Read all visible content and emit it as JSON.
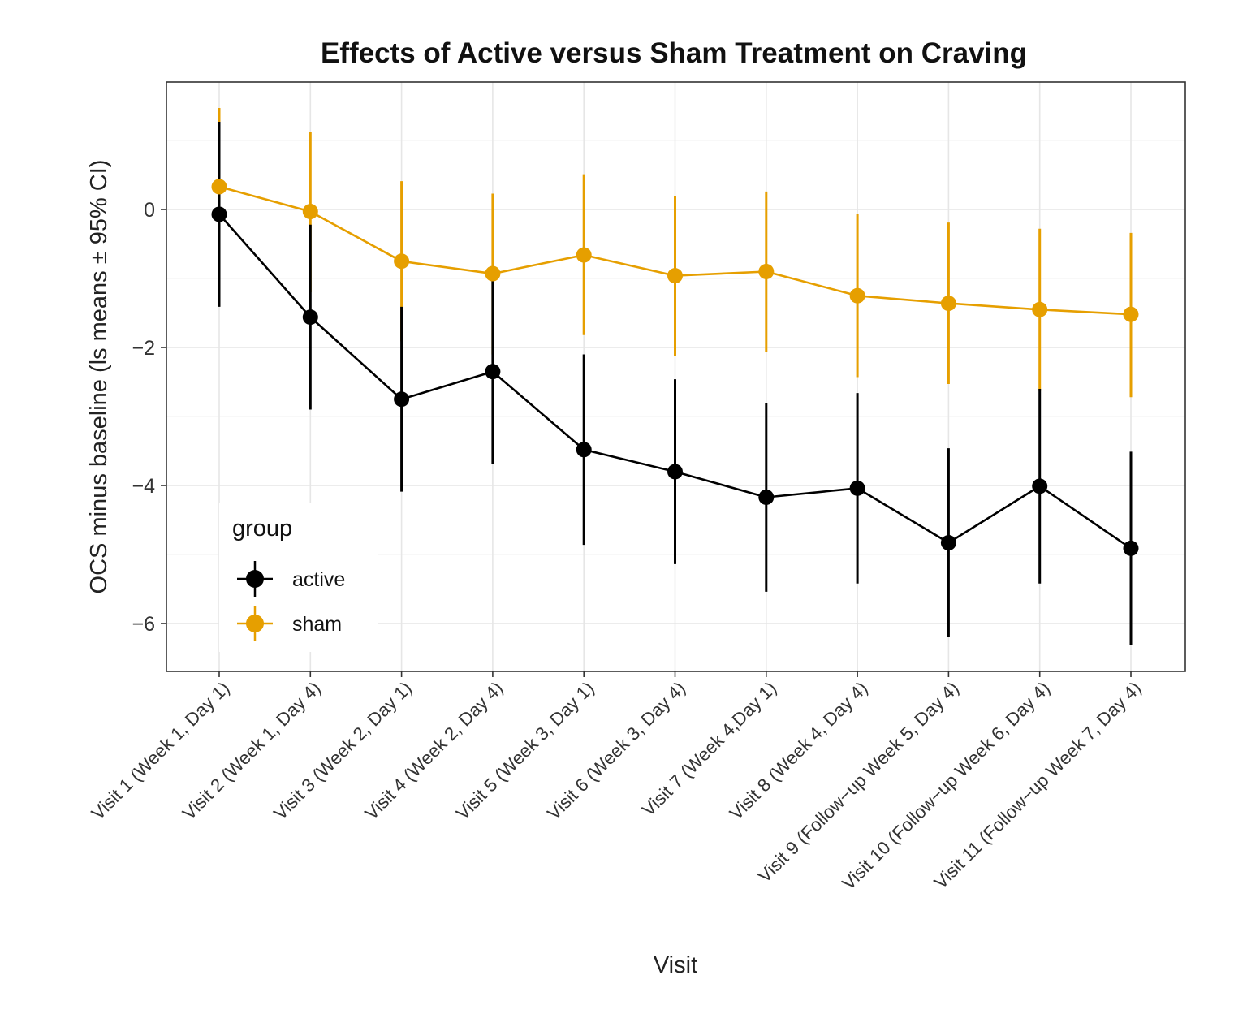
{
  "chart_data": {
    "type": "line",
    "title": "Effects of Active versus Sham Treatment on Craving",
    "xlabel": "Visit",
    "ylabel": "OCS minus baseline (ls means ± 95% CI)",
    "categories": [
      "Visit 1 (Week 1, Day 1)",
      "Visit 2 (Week 1, Day 4)",
      "Visit 3 (Week 2, Day 1)",
      "Visit 4 (Week 2, Day 4)",
      "Visit 5 (Week 3, Day 1)",
      "Visit 6 (Week 3, Day 4)",
      "Visit 7 (Week 4,Day 1)",
      "Visit 8 (Week 4, Day 4)",
      "Visit 9 (Follow−up Week 5, Day 4)",
      "Visit 10 (Follow−up Week 6, Day 4)",
      "Visit 11 (Follow−up Week 7, Day 4)"
    ],
    "ylim": [
      -6.7,
      1.85
    ],
    "yticks": [
      0,
      -2,
      -4,
      -6
    ],
    "ytick_labels": [
      "0",
      "−2",
      "−4",
      "−6"
    ],
    "grid": true,
    "legend": {
      "title": "group",
      "position": "bottom-left"
    },
    "series": [
      {
        "name": "active",
        "color": "#000000",
        "values": [
          -0.07,
          -1.56,
          -2.75,
          -2.35,
          -3.48,
          -3.8,
          -4.17,
          -4.04,
          -4.83,
          -4.01,
          -4.91
        ],
        "ci_low": [
          -1.41,
          -2.9,
          -4.09,
          -3.69,
          -4.86,
          -5.14,
          -5.54,
          -5.42,
          -6.2,
          -5.42,
          -6.31
        ],
        "ci_high": [
          1.27,
          -0.22,
          -1.41,
          -1.01,
          -2.1,
          -2.46,
          -2.8,
          -2.66,
          -3.46,
          -2.6,
          -3.51
        ]
      },
      {
        "name": "sham",
        "color": "#E69F00",
        "values": [
          0.33,
          -0.03,
          -0.75,
          -0.93,
          -0.66,
          -0.96,
          -0.9,
          -1.25,
          -1.36,
          -1.45,
          -1.52
        ],
        "ci_low": [
          -0.8,
          -1.2,
          -1.91,
          -2.1,
          -1.82,
          -2.12,
          -2.06,
          -2.43,
          -2.53,
          -2.63,
          -2.72
        ],
        "ci_high": [
          1.47,
          1.12,
          0.41,
          0.23,
          0.51,
          0.2,
          0.26,
          -0.07,
          -0.19,
          -0.28,
          -0.34
        ]
      }
    ]
  }
}
